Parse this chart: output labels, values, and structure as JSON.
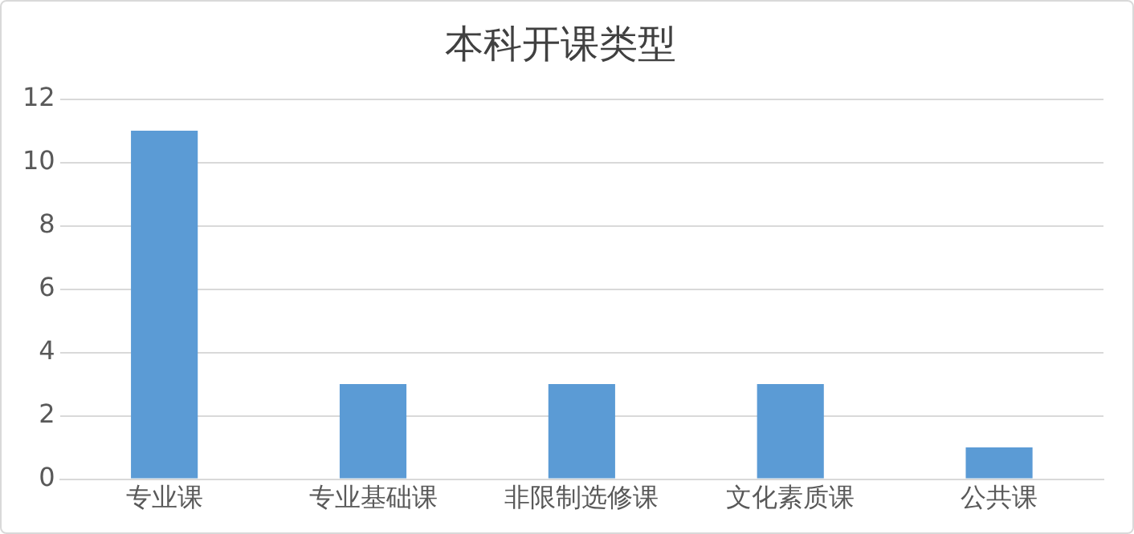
{
  "chart_data": {
    "type": "bar",
    "title": "本科开课类型",
    "categories": [
      "专业课",
      "专业基础课",
      "非限制选修课",
      "文化素质课",
      "公共课"
    ],
    "values": [
      11,
      3,
      3,
      3,
      1
    ],
    "color": "#5b9bd5",
    "ylim": [
      0,
      12
    ],
    "yticks": [
      0,
      2,
      4,
      6,
      8,
      10,
      12
    ],
    "grid": "y"
  }
}
